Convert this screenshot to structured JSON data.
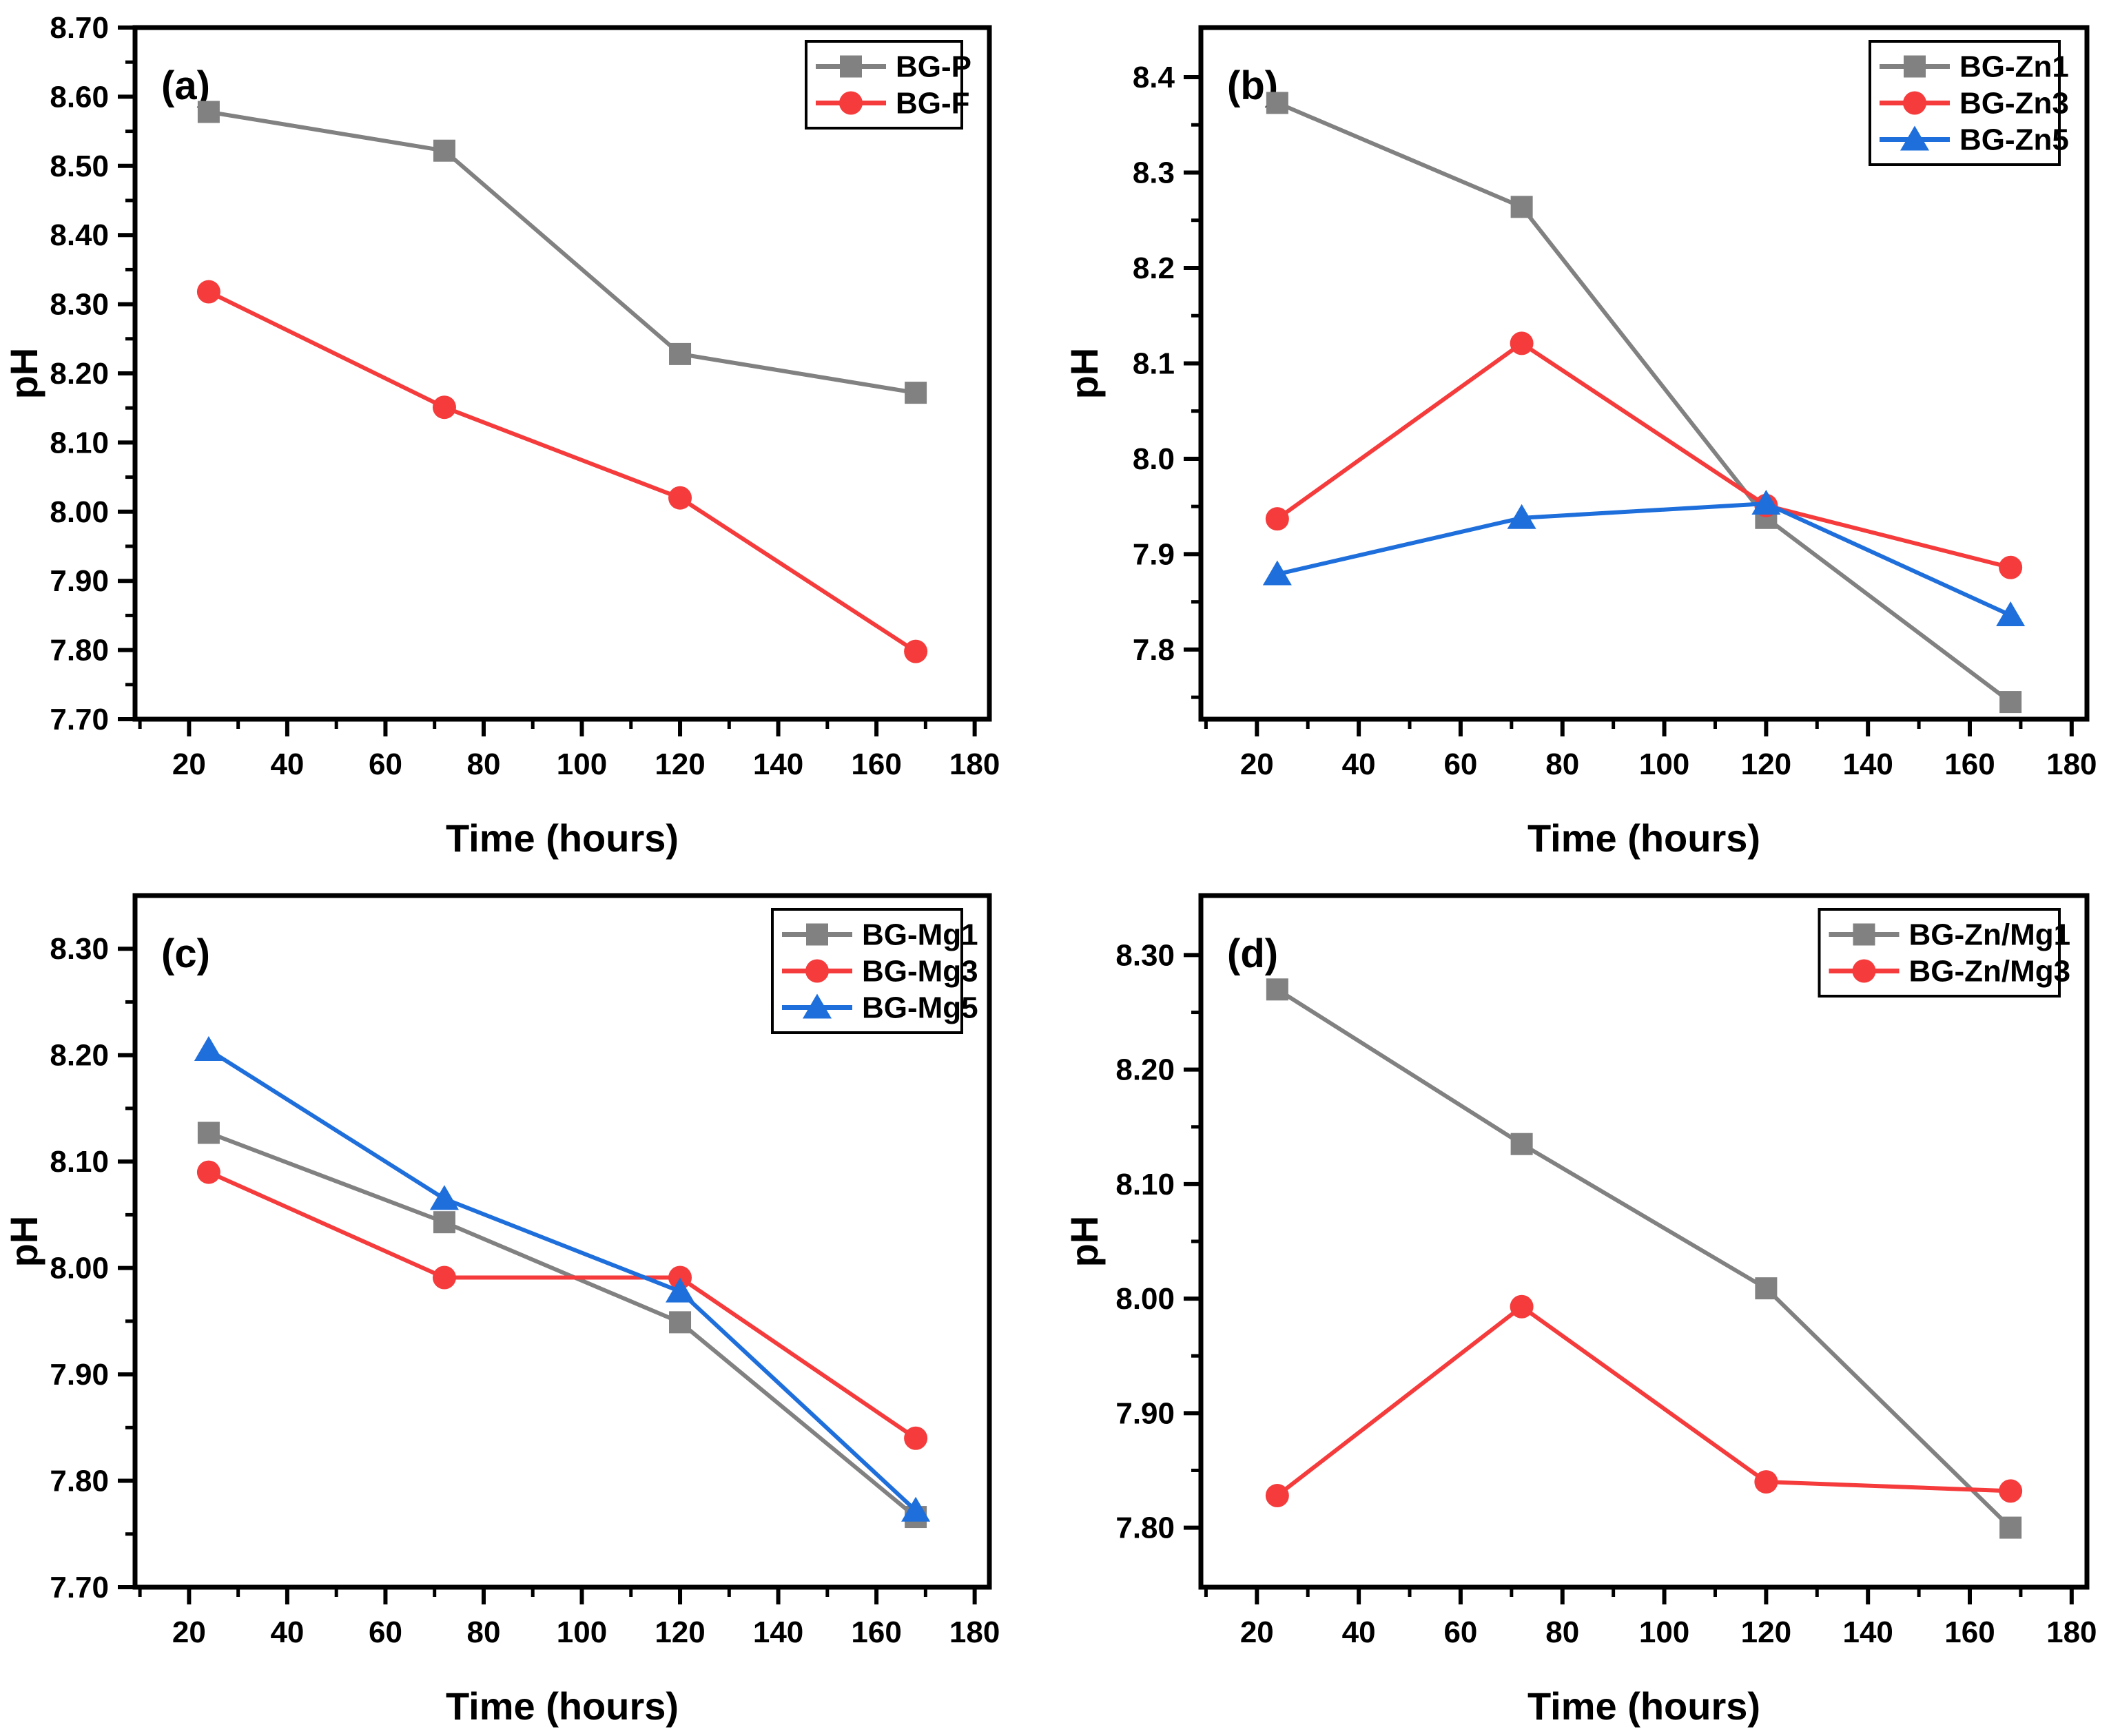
{
  "figure": {
    "background": "#ffffff",
    "layout": "2x2-grid",
    "xlabel": "Time (hours)",
    "ylabel": "pH"
  },
  "colors": {
    "gray": "#818181",
    "red": "#f53b3b",
    "blue": "#1e6fdc",
    "axis": "#000000",
    "legend_background": "#ffffff"
  },
  "chart_data": [
    {
      "type": "line",
      "panel_label": "(a)",
      "xlabel": "Time (hours)",
      "ylabel": "pH",
      "x": [
        24,
        72,
        120,
        168
      ],
      "xlim": [
        9,
        183
      ],
      "xticks": [
        20,
        40,
        60,
        80,
        100,
        120,
        140,
        160,
        180
      ],
      "ylim": [
        7.7,
        8.7
      ],
      "yticks": [
        7.7,
        7.8,
        7.9,
        8.0,
        8.1,
        8.2,
        8.3,
        8.4,
        8.5,
        8.6,
        8.7
      ],
      "ytick_decimals": 2,
      "grid": false,
      "legend_position": "top-right",
      "series": [
        {
          "name": "BG-P",
          "color": "#818181",
          "marker": "square",
          "values": [
            8.578,
            8.522,
            8.228,
            8.172
          ]
        },
        {
          "name": "BG-F",
          "color": "#f53b3b",
          "marker": "circle",
          "values": [
            8.318,
            8.151,
            8.02,
            7.798
          ]
        }
      ]
    },
    {
      "type": "line",
      "panel_label": "(b)",
      "xlabel": "Time (hours)",
      "ylabel": "pH",
      "x": [
        24,
        72,
        120,
        168
      ],
      "xlim": [
        9,
        183
      ],
      "xticks": [
        20,
        40,
        60,
        80,
        100,
        120,
        140,
        160,
        180
      ],
      "ylim": [
        7.727,
        8.452
      ],
      "yticks": [
        7.8,
        7.9,
        8.0,
        8.1,
        8.2,
        8.3,
        8.4
      ],
      "ytick_decimals": 1,
      "grid": false,
      "legend_position": "top-right",
      "series": [
        {
          "name": "BG-Zn1",
          "color": "#818181",
          "marker": "square",
          "values": [
            8.373,
            8.264,
            7.938,
            7.745
          ]
        },
        {
          "name": "BG-Zn3",
          "color": "#f53b3b",
          "marker": "circle",
          "values": [
            7.937,
            8.121,
            7.951,
            7.886
          ]
        },
        {
          "name": "BG-Zn5",
          "color": "#1e6fdc",
          "marker": "triangle",
          "values": [
            7.879,
            7.938,
            7.953,
            7.836
          ]
        }
      ]
    },
    {
      "type": "line",
      "panel_label": "(c)",
      "xlabel": "Time (hours)",
      "ylabel": "pH",
      "x": [
        24,
        72,
        120,
        168
      ],
      "xlim": [
        9,
        183
      ],
      "xticks": [
        20,
        40,
        60,
        80,
        100,
        120,
        140,
        160,
        180
      ],
      "ylim": [
        7.7,
        8.35
      ],
      "yticks": [
        7.7,
        7.8,
        7.9,
        8.0,
        8.1,
        8.2,
        8.3
      ],
      "ytick_decimals": 2,
      "grid": false,
      "legend_position": "top-right",
      "series": [
        {
          "name": "BG-Mg1",
          "color": "#818181",
          "marker": "square",
          "values": [
            8.127,
            8.043,
            7.949,
            7.766
          ]
        },
        {
          "name": "BG-Mg3",
          "color": "#f53b3b",
          "marker": "circle",
          "values": [
            8.09,
            7.991,
            7.991,
            7.84
          ]
        },
        {
          "name": "BG-Mg5",
          "color": "#1e6fdc",
          "marker": "triangle",
          "values": [
            8.205,
            8.065,
            7.978,
            7.772
          ]
        }
      ]
    },
    {
      "type": "line",
      "panel_label": "(d)",
      "xlabel": "Time (hours)",
      "ylabel": "pH",
      "x": [
        24,
        72,
        120,
        168
      ],
      "xlim": [
        9,
        183
      ],
      "xticks": [
        20,
        40,
        60,
        80,
        100,
        120,
        140,
        160,
        180
      ],
      "ylim": [
        7.748,
        8.352
      ],
      "yticks": [
        7.8,
        7.9,
        8.0,
        8.1,
        8.2,
        8.3
      ],
      "ytick_decimals": 2,
      "grid": false,
      "legend_position": "top-right",
      "series": [
        {
          "name": "BG-Zn/Mg1",
          "color": "#818181",
          "marker": "square",
          "values": [
            8.27,
            8.135,
            8.009,
            7.8
          ]
        },
        {
          "name": "BG-Zn/Mg3",
          "color": "#f53b3b",
          "marker": "circle",
          "values": [
            7.828,
            7.993,
            7.84,
            7.832
          ]
        }
      ]
    }
  ]
}
